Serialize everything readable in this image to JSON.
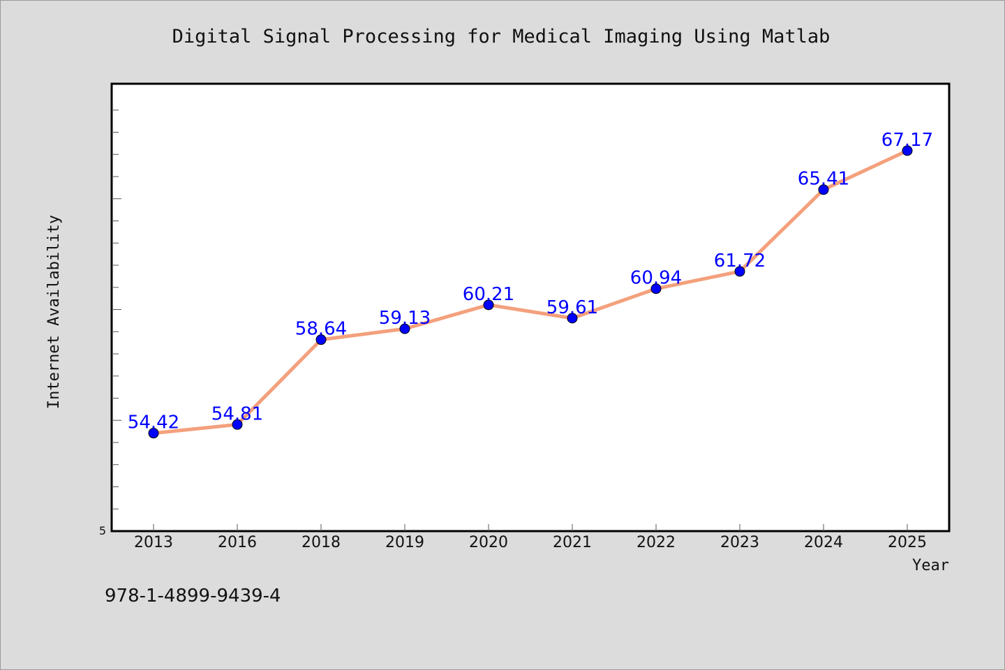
{
  "page": {
    "isbn": "978-1-4899-9439-4"
  },
  "colors": {
    "background": "#dcdcdc",
    "plot_background": "#ffffff",
    "line": "#f4a07c",
    "markers": "#0000ff",
    "data_labels": "#0000ff",
    "axes": "#000000"
  },
  "chart_data": {
    "type": "line",
    "title": "Digital Signal Processing for Medical Imaging Using Matlab",
    "xlabel": "Year",
    "ylabel": "Internet Availability",
    "categories": [
      "2013",
      "2016",
      "2018",
      "2019",
      "2020",
      "2021",
      "2022",
      "2023",
      "2024",
      "2025"
    ],
    "series": [
      {
        "values": [
          54.42,
          54.81,
          58.64,
          59.13,
          60.21,
          59.61,
          60.94,
          61.72,
          65.41,
          67.17
        ],
        "labels": [
          "54.42",
          "54.81",
          "58.64",
          "59.13",
          "60.21",
          "59.61",
          "60.94",
          "61.72",
          "65.41",
          "67.17"
        ]
      }
    ],
    "y_tick_labels": [
      "5"
    ],
    "ylim": [
      50,
      70
    ],
    "grid": false,
    "legend": "none"
  }
}
